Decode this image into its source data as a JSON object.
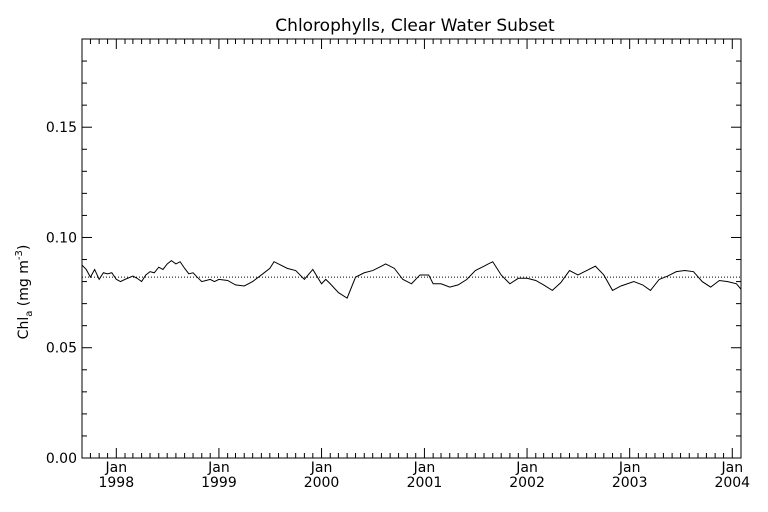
{
  "chart_data": {
    "type": "line",
    "title": "Chlorophylls, Clear Water Subset",
    "ylabel": "Chl",
    "ylabel_subscript": "a",
    "ylabel_unit_open": " (mg m",
    "ylabel_unit_sup": "-3",
    "ylabel_unit_close": ")",
    "xlabel": "",
    "ylim": [
      0.0,
      0.19
    ],
    "xlim": [
      "1997-09-01",
      "2004-02-01"
    ],
    "y_ticks": [
      "0.00",
      "0.05",
      "0.10",
      "0.15"
    ],
    "x_tick_months": [
      "Jan",
      "Jan",
      "Jan",
      "Jan",
      "Jan",
      "Jan",
      "Jan"
    ],
    "x_tick_years": [
      "1998",
      "1999",
      "2000",
      "2001",
      "2002",
      "2003",
      "2004"
    ],
    "x_tick_dates": [
      "1998-01-01",
      "1999-01-01",
      "2000-01-01",
      "2001-01-01",
      "2002-01-01",
      "2003-01-01",
      "2004-01-01"
    ],
    "grid": false,
    "reference_line": {
      "y": 0.082,
      "style": "dotted"
    },
    "series": [
      {
        "color": "#000000",
        "points": [
          [
            "1997-09-01",
            0.0875
          ],
          [
            "1997-09-16",
            0.0855
          ],
          [
            "1997-10-01",
            0.082
          ],
          [
            "1997-10-16",
            0.0855
          ],
          [
            "1997-11-01",
            0.081
          ],
          [
            "1997-11-16",
            0.084
          ],
          [
            "1997-12-01",
            0.0835
          ],
          [
            "1997-12-16",
            0.084
          ],
          [
            "1998-01-01",
            0.081
          ],
          [
            "1998-01-16",
            0.08
          ],
          [
            "1998-02-01",
            0.081
          ],
          [
            "1998-03-01",
            0.0825
          ],
          [
            "1998-03-16",
            0.0815
          ],
          [
            "1998-04-01",
            0.08
          ],
          [
            "1998-04-16",
            0.083
          ],
          [
            "1998-05-01",
            0.0845
          ],
          [
            "1998-05-16",
            0.084
          ],
          [
            "1998-06-01",
            0.0865
          ],
          [
            "1998-06-16",
            0.0855
          ],
          [
            "1998-07-01",
            0.088
          ],
          [
            "1998-07-16",
            0.0895
          ],
          [
            "1998-08-01",
            0.088
          ],
          [
            "1998-08-16",
            0.089
          ],
          [
            "1998-09-01",
            0.086
          ],
          [
            "1998-09-16",
            0.0835
          ],
          [
            "1998-10-01",
            0.084
          ],
          [
            "1998-10-16",
            0.082
          ],
          [
            "1998-11-01",
            0.08
          ],
          [
            "1998-11-16",
            0.0805
          ],
          [
            "1998-12-01",
            0.081
          ],
          [
            "1998-12-16",
            0.08
          ],
          [
            "1999-01-01",
            0.081
          ],
          [
            "1999-02-01",
            0.0805
          ],
          [
            "1999-03-01",
            0.0785
          ],
          [
            "1999-04-01",
            0.078
          ],
          [
            "1999-05-01",
            0.08
          ],
          [
            "1999-06-01",
            0.083
          ],
          [
            "1999-07-01",
            0.086
          ],
          [
            "1999-07-16",
            0.089
          ],
          [
            "1999-08-01",
            0.088
          ],
          [
            "1999-09-01",
            0.086
          ],
          [
            "1999-10-01",
            0.085
          ],
          [
            "1999-11-01",
            0.081
          ],
          [
            "1999-12-01",
            0.0855
          ],
          [
            "2000-01-01",
            0.079
          ],
          [
            "2000-01-16",
            0.081
          ],
          [
            "2000-02-01",
            0.079
          ],
          [
            "2000-03-01",
            0.075
          ],
          [
            "2000-04-01",
            0.0725
          ],
          [
            "2000-05-01",
            0.082
          ],
          [
            "2000-06-01",
            0.084
          ],
          [
            "2000-07-01",
            0.085
          ],
          [
            "2000-08-01",
            0.087
          ],
          [
            "2000-08-16",
            0.088
          ],
          [
            "2000-09-16",
            0.086
          ],
          [
            "2000-10-16",
            0.081
          ],
          [
            "2000-11-16",
            0.079
          ],
          [
            "2000-12-16",
            0.083
          ],
          [
            "2001-01-16",
            0.083
          ],
          [
            "2001-02-01",
            0.079
          ],
          [
            "2001-03-01",
            0.079
          ],
          [
            "2001-04-01",
            0.0775
          ],
          [
            "2001-05-01",
            0.0785
          ],
          [
            "2001-06-01",
            0.081
          ],
          [
            "2001-07-01",
            0.085
          ],
          [
            "2001-08-01",
            0.087
          ],
          [
            "2001-08-16",
            0.088
          ],
          [
            "2001-09-01",
            0.089
          ],
          [
            "2001-10-01",
            0.083
          ],
          [
            "2001-11-01",
            0.079
          ],
          [
            "2001-12-01",
            0.0815
          ],
          [
            "2002-01-01",
            0.0815
          ],
          [
            "2002-02-01",
            0.0805
          ],
          [
            "2002-03-01",
            0.0785
          ],
          [
            "2002-04-01",
            0.076
          ],
          [
            "2002-05-01",
            0.0795
          ],
          [
            "2002-06-01",
            0.085
          ],
          [
            "2002-07-01",
            0.083
          ],
          [
            "2002-08-01",
            0.085
          ],
          [
            "2002-09-01",
            0.087
          ],
          [
            "2002-10-01",
            0.083
          ],
          [
            "2002-11-01",
            0.076
          ],
          [
            "2002-12-01",
            0.078
          ],
          [
            "2003-01-16",
            0.08
          ],
          [
            "2003-02-16",
            0.0785
          ],
          [
            "2003-03-16",
            0.076
          ],
          [
            "2003-04-16",
            0.081
          ],
          [
            "2003-05-16",
            0.0825
          ],
          [
            "2003-06-16",
            0.0845
          ],
          [
            "2003-07-16",
            0.085
          ],
          [
            "2003-08-16",
            0.0845
          ],
          [
            "2003-09-16",
            0.08
          ],
          [
            "2003-10-16",
            0.0775
          ],
          [
            "2003-11-16",
            0.0805
          ],
          [
            "2003-12-16",
            0.08
          ],
          [
            "2004-01-16",
            0.079
          ],
          [
            "2004-02-01",
            0.0765
          ]
        ]
      }
    ]
  }
}
